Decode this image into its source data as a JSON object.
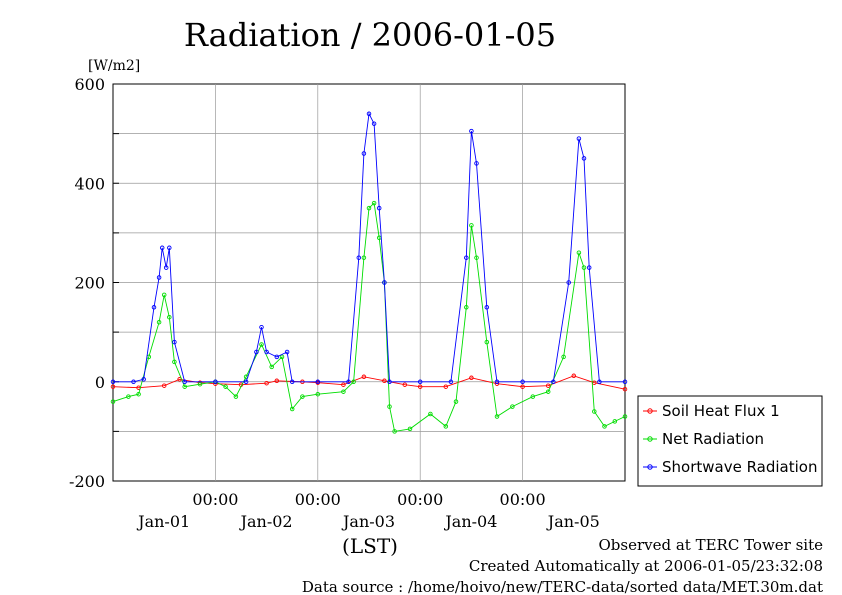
{
  "chart_data": {
    "type": "line",
    "title": "Radiation / 2006-01-05",
    "ylabel": "[W/m2]",
    "xlabel": "(LST)",
    "ylim": [
      -200,
      600
    ],
    "yticks": [
      600,
      400,
      200,
      0,
      -200
    ],
    "xlim": [
      0,
      5
    ],
    "time_labels": [
      "00:00",
      "00:00",
      "00:00",
      "00:00"
    ],
    "date_labels": [
      "Jan-01",
      "Jan-02",
      "Jan-03",
      "Jan-04",
      "Jan-05"
    ],
    "grid": true,
    "legend_position": "right",
    "series": [
      {
        "name": "Soil Heat Flux 1",
        "color": "#ff0000",
        "points": [
          [
            0,
            -10
          ],
          [
            0.25,
            -12
          ],
          [
            0.5,
            -8
          ],
          [
            0.65,
            5
          ],
          [
            0.85,
            -2
          ],
          [
            1.0,
            -4
          ],
          [
            1.25,
            -6
          ],
          [
            1.5,
            -3
          ],
          [
            1.6,
            2
          ],
          [
            1.85,
            0
          ],
          [
            2.0,
            -2
          ],
          [
            2.25,
            -6
          ],
          [
            2.45,
            10
          ],
          [
            2.65,
            2
          ],
          [
            2.85,
            -6
          ],
          [
            3.0,
            -10
          ],
          [
            3.25,
            -10
          ],
          [
            3.5,
            8
          ],
          [
            3.75,
            -4
          ],
          [
            4.0,
            -10
          ],
          [
            4.25,
            -8
          ],
          [
            4.5,
            12
          ],
          [
            4.7,
            -2
          ],
          [
            5.0,
            -15
          ]
        ]
      },
      {
        "name": "Net Radiation",
        "color": "#00dd00",
        "points": [
          [
            0,
            -40
          ],
          [
            0.15,
            -30
          ],
          [
            0.25,
            -25
          ],
          [
            0.35,
            50
          ],
          [
            0.45,
            120
          ],
          [
            0.5,
            175
          ],
          [
            0.55,
            130
          ],
          [
            0.6,
            40
          ],
          [
            0.7,
            -10
          ],
          [
            0.85,
            -5
          ],
          [
            1.0,
            0
          ],
          [
            1.1,
            -10
          ],
          [
            1.2,
            -30
          ],
          [
            1.3,
            10
          ],
          [
            1.45,
            75
          ],
          [
            1.55,
            30
          ],
          [
            1.65,
            50
          ],
          [
            1.75,
            -55
          ],
          [
            1.85,
            -30
          ],
          [
            2.0,
            -25
          ],
          [
            2.25,
            -20
          ],
          [
            2.35,
            0
          ],
          [
            2.45,
            250
          ],
          [
            2.5,
            350
          ],
          [
            2.55,
            360
          ],
          [
            2.6,
            290
          ],
          [
            2.65,
            200
          ],
          [
            2.7,
            -50
          ],
          [
            2.75,
            -100
          ],
          [
            2.9,
            -95
          ],
          [
            3.1,
            -65
          ],
          [
            3.25,
            -90
          ],
          [
            3.35,
            -40
          ],
          [
            3.45,
            150
          ],
          [
            3.5,
            315
          ],
          [
            3.55,
            250
          ],
          [
            3.65,
            80
          ],
          [
            3.75,
            -70
          ],
          [
            3.9,
            -50
          ],
          [
            4.1,
            -30
          ],
          [
            4.25,
            -20
          ],
          [
            4.4,
            50
          ],
          [
            4.55,
            260
          ],
          [
            4.6,
            230
          ],
          [
            4.7,
            -60
          ],
          [
            4.8,
            -90
          ],
          [
            4.9,
            -80
          ],
          [
            5.0,
            -70
          ]
        ]
      },
      {
        "name": "Shortwave Radiation",
        "color": "#0000ff",
        "points": [
          [
            0,
            0
          ],
          [
            0.2,
            0
          ],
          [
            0.3,
            5
          ],
          [
            0.4,
            150
          ],
          [
            0.45,
            210
          ],
          [
            0.48,
            270
          ],
          [
            0.52,
            230
          ],
          [
            0.55,
            270
          ],
          [
            0.6,
            80
          ],
          [
            0.7,
            0
          ],
          [
            1.0,
            0
          ],
          [
            1.3,
            0
          ],
          [
            1.4,
            60
          ],
          [
            1.45,
            110
          ],
          [
            1.5,
            60
          ],
          [
            1.6,
            50
          ],
          [
            1.7,
            60
          ],
          [
            1.75,
            0
          ],
          [
            2.0,
            0
          ],
          [
            2.3,
            0
          ],
          [
            2.4,
            250
          ],
          [
            2.45,
            460
          ],
          [
            2.5,
            540
          ],
          [
            2.55,
            520
          ],
          [
            2.6,
            350
          ],
          [
            2.65,
            200
          ],
          [
            2.7,
            0
          ],
          [
            3.0,
            0
          ],
          [
            3.3,
            0
          ],
          [
            3.45,
            250
          ],
          [
            3.5,
            505
          ],
          [
            3.55,
            440
          ],
          [
            3.65,
            150
          ],
          [
            3.75,
            0
          ],
          [
            4.0,
            0
          ],
          [
            4.3,
            0
          ],
          [
            4.45,
            200
          ],
          [
            4.55,
            490
          ],
          [
            4.6,
            450
          ],
          [
            4.65,
            230
          ],
          [
            4.75,
            0
          ],
          [
            5.0,
            0
          ]
        ]
      }
    ]
  },
  "footer": {
    "observed": "Observed at TERC Tower site",
    "created": "Created Automatically at 2006-01-05/23:32:08",
    "source": "Data source : /home/hoivo/new/TERC-data/sorted data/MET.30m.dat"
  }
}
